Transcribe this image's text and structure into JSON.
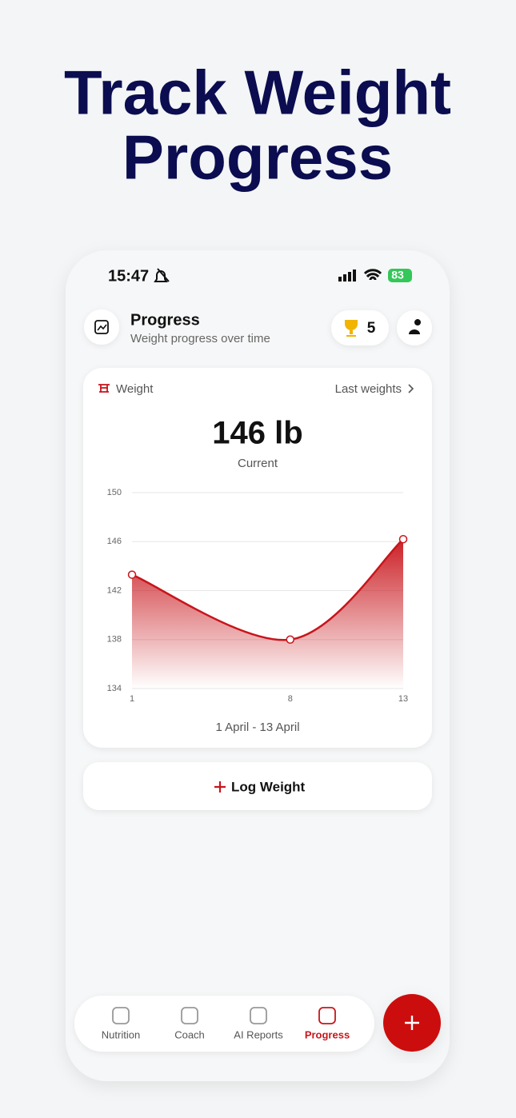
{
  "headline": [
    "Track Weight",
    "Progress"
  ],
  "status_bar": {
    "time": "15:47",
    "battery": "83"
  },
  "header": {
    "title": "Progress",
    "subtitle": "Weight progress over time",
    "trophies": 5
  },
  "card": {
    "label": "Weight",
    "link": "Last weights",
    "current_value": "146 lb",
    "current_caption": "Current",
    "date_range": "1 April - 13 April"
  },
  "chart_data": {
    "type": "area",
    "x": [
      1,
      8,
      13
    ],
    "values": [
      143.3,
      138,
      146.2
    ],
    "xlim": [
      1,
      13
    ],
    "ylim": [
      134,
      150
    ],
    "xticks": [
      1,
      8,
      13
    ],
    "yticks": [
      134,
      138,
      142,
      146,
      150
    ],
    "color": "#c8151b",
    "grid": true
  },
  "log_button": "Log Weight",
  "nav": {
    "tabs": [
      "Nutrition",
      "Coach",
      "AI Reports",
      "Progress"
    ],
    "active": 3
  }
}
